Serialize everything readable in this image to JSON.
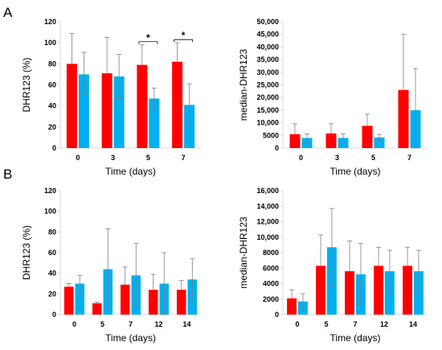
{
  "panels": [
    {
      "letter": "A"
    },
    {
      "letter": "B"
    }
  ],
  "colors": {
    "series1": "#ff0000",
    "series2": "#00b0f0",
    "axis": "#d9d9d9",
    "error": "#7f7f7f"
  },
  "chart_data": [
    {
      "type": "bar",
      "panel": "A",
      "xlabel": "Time (days)",
      "ylabel": "DHR123 (%)",
      "categories": [
        "0",
        "3",
        "5",
        "7"
      ],
      "ylim": [
        0,
        120
      ],
      "yticks": [
        "0",
        "20",
        "40",
        "60",
        "80",
        "100",
        "120"
      ],
      "series": [
        {
          "values": [
            80,
            71,
            79,
            82
          ],
          "upper": [
            109,
            105,
            98,
            100
          ],
          "lower": [
            80,
            71,
            79,
            82
          ]
        },
        {
          "values": [
            70,
            68,
            47,
            41
          ],
          "upper": [
            91,
            89,
            57,
            61
          ],
          "lower": [
            51,
            47,
            37,
            22
          ]
        }
      ],
      "annotations": [
        {
          "category": "5",
          "text": "*"
        },
        {
          "category": "7",
          "text": "*"
        }
      ]
    },
    {
      "type": "bar",
      "panel": "A",
      "xlabel": "Time (days)",
      "ylabel": "median-DHR123",
      "categories": [
        "0",
        "3",
        "5",
        "7"
      ],
      "ylim": [
        0,
        50000
      ],
      "yticks": [
        "0",
        "5000",
        "10,000",
        "15,000",
        "20,000",
        "25,000",
        "30,000",
        "35,000",
        "40,000",
        "45,000",
        "50,000"
      ],
      "series": [
        {
          "values": [
            5500,
            5800,
            8800,
            23000
          ],
          "upper": [
            9600,
            9600,
            13400,
            45000
          ],
          "lower": [
            5500,
            5800,
            8800,
            23000
          ]
        },
        {
          "values": [
            4000,
            4000,
            4200,
            15000
          ],
          "upper": [
            5600,
            5600,
            5400,
            31500
          ],
          "lower": [
            2400,
            2400,
            3000,
            0
          ]
        }
      ]
    },
    {
      "type": "bar",
      "panel": "B",
      "xlabel": "Time (days)",
      "ylabel": "DHR123 (%)",
      "categories": [
        "0",
        "5",
        "7",
        "12",
        "14"
      ],
      "ylim": [
        0,
        120
      ],
      "yticks": [
        "0",
        "20",
        "40",
        "60",
        "80",
        "100",
        "120"
      ],
      "series": [
        {
          "values": [
            27,
            11,
            29,
            24,
            24
          ],
          "upper": [
            30,
            12,
            46,
            39,
            33
          ],
          "lower": [
            27,
            11,
            29,
            24,
            24
          ]
        },
        {
          "values": [
            30,
            44,
            38,
            30,
            34
          ],
          "upper": [
            38,
            83,
            69,
            60,
            54
          ],
          "lower": [
            21,
            5,
            7,
            0,
            14
          ]
        }
      ]
    },
    {
      "type": "bar",
      "panel": "B",
      "xlabel": "Time (days)",
      "ylabel": "median-DHR123",
      "categories": [
        "0",
        "5",
        "7",
        "12",
        "14"
      ],
      "ylim": [
        0,
        16000
      ],
      "yticks": [
        "0",
        "2000",
        "4000",
        "6000",
        "8000",
        "10,000",
        "12,000",
        "14,000",
        "16,000"
      ],
      "series": [
        {
          "values": [
            2100,
            6300,
            5600,
            6300,
            6300
          ],
          "upper": [
            3200,
            10300,
            9500,
            8700,
            8700
          ],
          "lower": [
            2100,
            6300,
            5600,
            6300,
            6300
          ]
        },
        {
          "values": [
            1700,
            8700,
            5200,
            5600,
            5600
          ],
          "upper": [
            2700,
            13700,
            9200,
            8300,
            8300
          ],
          "lower": [
            700,
            3700,
            1200,
            2900,
            2900
          ]
        }
      ]
    }
  ]
}
